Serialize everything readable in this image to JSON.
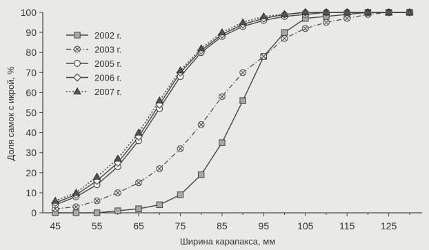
{
  "chart_data": {
    "type": "line",
    "xlabel": "Ширина карапакса, мм",
    "ylabel": "Доля самок с икрой, %",
    "xlim": [
      42,
      133
    ],
    "ylim": [
      0,
      100
    ],
    "xticks": [
      45,
      55,
      65,
      75,
      85,
      95,
      105,
      115,
      125
    ],
    "yticks": [
      0,
      10,
      20,
      30,
      40,
      50,
      60,
      70,
      80,
      90,
      100
    ],
    "grid": false,
    "legend_position": "top-left",
    "x": [
      45,
      50,
      55,
      60,
      65,
      70,
      75,
      80,
      85,
      90,
      95,
      100,
      105,
      110,
      115,
      120,
      125,
      130
    ],
    "series": [
      {
        "name": "2002 г.",
        "marker": "square",
        "line_style": "solid",
        "values": [
          0,
          0,
          0,
          1,
          2,
          4,
          9,
          19,
          35,
          56,
          78,
          90,
          97,
          98,
          99,
          100,
          100,
          100
        ]
      },
      {
        "name": "2003 г.",
        "marker": "circle-cross",
        "line_style": "dash-dot",
        "values": [
          2,
          3,
          6,
          10,
          15,
          22,
          32,
          44,
          58,
          70,
          78,
          87,
          92,
          95,
          97,
          99,
          100,
          100
        ]
      },
      {
        "name": "2005 г.",
        "marker": "circle-open",
        "line_style": "solid",
        "values": [
          4,
          8,
          14,
          23,
          36,
          52,
          68,
          80,
          88,
          93,
          96,
          98,
          99,
          100,
          100,
          100,
          100,
          100
        ]
      },
      {
        "name": "2006 г.",
        "marker": "diamond-open",
        "line_style": "solid",
        "values": [
          5,
          9,
          16,
          25,
          38,
          54,
          70,
          81,
          89,
          94,
          97,
          99,
          100,
          100,
          100,
          100,
          100,
          100
        ]
      },
      {
        "name": "2007 г.",
        "marker": "triangle",
        "line_style": "dotted",
        "values": [
          6,
          10,
          18,
          27,
          40,
          56,
          71,
          82,
          90,
          95,
          98,
          99,
          100,
          100,
          100,
          100,
          100,
          100
        ]
      }
    ]
  }
}
